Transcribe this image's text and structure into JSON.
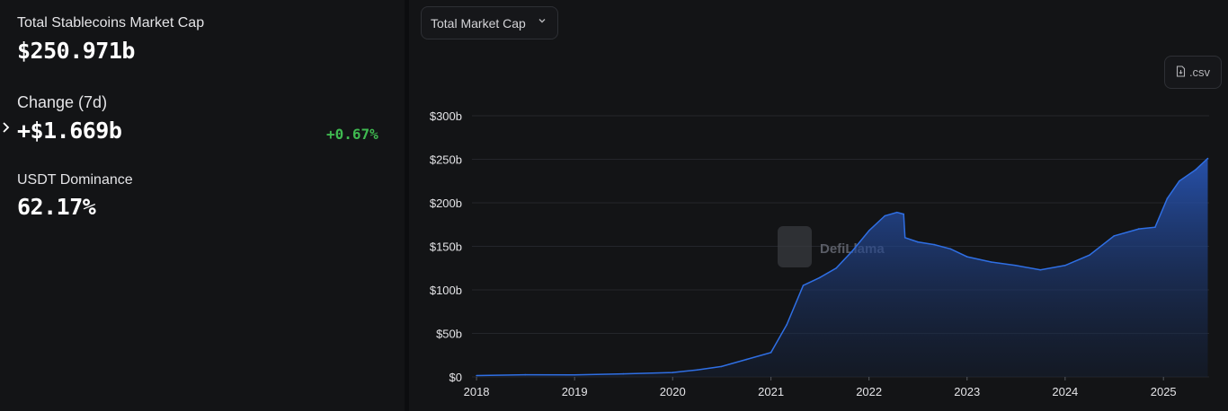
{
  "metrics": {
    "market_cap_label": "Total Stablecoins Market Cap",
    "market_cap_value": "$250.971b",
    "change_label": "Change (7d)",
    "change_value": "+$1.669b",
    "change_percent": "+0.67%",
    "dominance_label": "USDT Dominance",
    "dominance_value": "62.17%",
    "expand_icon": "chevron-right-icon"
  },
  "controls": {
    "chart_select_label": "Total Market Cap",
    "csv_label": ".csv"
  },
  "watermark": "DefiLlama",
  "colors": {
    "background": "#131416",
    "line": "#2f6fe4",
    "positive": "#3fb950"
  },
  "chart_data": {
    "type": "area",
    "title": "",
    "xlabel": "",
    "ylabel": "",
    "x_ticks": [
      "2018",
      "2019",
      "2020",
      "2021",
      "2022",
      "2023",
      "2024",
      "2025"
    ],
    "y_ticks": [
      "$0",
      "$50b",
      "$100b",
      "$150b",
      "$200b",
      "$250b",
      "$300b"
    ],
    "ylim": [
      0,
      300
    ],
    "grid": true,
    "series": [
      {
        "values_unit": "billion USD",
        "x": [
          "2018-01-01",
          "2018-07-01",
          "2019-01-01",
          "2019-07-01",
          "2020-01-01",
          "2020-04-01",
          "2020-07-01",
          "2020-10-01",
          "2021-01-01",
          "2021-03-01",
          "2021-05-01",
          "2021-07-01",
          "2021-09-01",
          "2021-11-01",
          "2022-01-01",
          "2022-03-01",
          "2022-04-15",
          "2022-05-10",
          "2022-05-15",
          "2022-07-01",
          "2022-09-01",
          "2022-11-01",
          "2023-01-01",
          "2023-04-01",
          "2023-07-01",
          "2023-10-01",
          "2024-01-01",
          "2024-04-01",
          "2024-07-01",
          "2024-10-01",
          "2024-12-01",
          "2025-01-15",
          "2025-03-01",
          "2025-05-01",
          "2025-06-15"
        ],
        "values": [
          1.5,
          2.5,
          2.3,
          3.5,
          5,
          8,
          12,
          20,
          28,
          60,
          105,
          114,
          125,
          145,
          168,
          185,
          189,
          187,
          160,
          155,
          152,
          147,
          138,
          132,
          128,
          123,
          128,
          140,
          162,
          170,
          172,
          205,
          225,
          238,
          251
        ]
      }
    ]
  }
}
